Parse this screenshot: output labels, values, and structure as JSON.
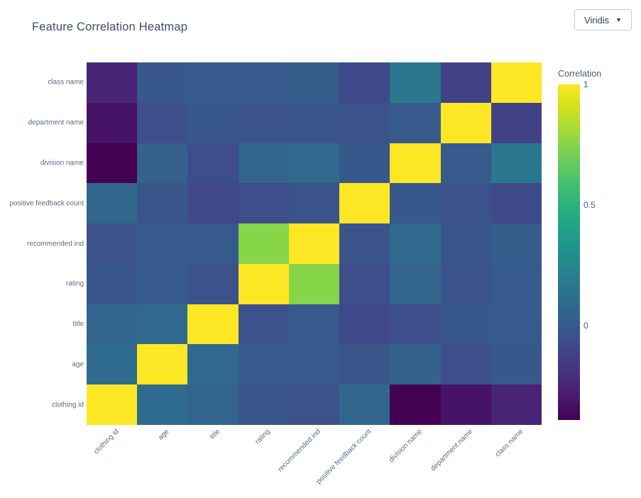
{
  "header": {
    "title": "Feature Correlation Heatmap"
  },
  "controls": {
    "colormap": {
      "value": "Viridis",
      "arrow": "▼"
    }
  },
  "chart_data": {
    "type": "heatmap",
    "title": "Feature Correlation Heatmap",
    "colorscale_name": "Viridis",
    "legend_position": "right",
    "grid": false,
    "x_categories": [
      "clothing id",
      "age",
      "title",
      "rating",
      "recommended ind",
      "positive feedback count",
      "division name",
      "department name",
      "class name"
    ],
    "y_categories": [
      "class name",
      "department name",
      "division name",
      "positive feedback count",
      "recommended ind",
      "rating",
      "title",
      "age",
      "clothing id"
    ],
    "z": [
      [
        -0.25,
        -0.01,
        0.0,
        0.0,
        0.01,
        -0.08,
        0.16,
        -0.12,
        1.0
      ],
      [
        -0.32,
        -0.06,
        -0.01,
        -0.03,
        -0.02,
        -0.04,
        0.0,
        1.0,
        -0.12
      ],
      [
        -0.39,
        0.04,
        -0.06,
        0.05,
        0.08,
        -0.01,
        1.0,
        0.0,
        0.16
      ],
      [
        0.07,
        -0.02,
        -0.09,
        -0.06,
        -0.03,
        1.0,
        -0.01,
        -0.04,
        -0.08
      ],
      [
        -0.04,
        0.0,
        0.0,
        0.75,
        1.0,
        -0.03,
        0.08,
        -0.02,
        0.01
      ],
      [
        -0.02,
        0.0,
        -0.04,
        1.0,
        0.75,
        -0.06,
        0.05,
        -0.03,
        0.0
      ],
      [
        0.06,
        0.08,
        1.0,
        -0.04,
        0.0,
        -0.09,
        -0.06,
        -0.01,
        0.0
      ],
      [
        0.09,
        1.0,
        0.08,
        0.0,
        0.0,
        -0.02,
        0.04,
        -0.06,
        -0.01
      ],
      [
        1.0,
        0.09,
        0.06,
        -0.02,
        -0.04,
        0.07,
        -0.39,
        -0.32,
        -0.25
      ]
    ],
    "zmin": -0.39,
    "zmax": 1,
    "colorscale_stops": [
      [
        0.0,
        "#440154"
      ],
      [
        0.0627,
        "#48186a"
      ],
      [
        0.1255,
        "#472d7b"
      ],
      [
        0.1882,
        "#424086"
      ],
      [
        0.251,
        "#3b528b"
      ],
      [
        0.3137,
        "#33638d"
      ],
      [
        0.3765,
        "#2c728e"
      ],
      [
        0.4392,
        "#26828e"
      ],
      [
        0.502,
        "#21918c"
      ],
      [
        0.5647,
        "#1fa088"
      ],
      [
        0.6275,
        "#28ae80"
      ],
      [
        0.6902,
        "#3fbc73"
      ],
      [
        0.7529,
        "#5ec962"
      ],
      [
        0.8157,
        "#84d44b"
      ],
      [
        0.8784,
        "#addc30"
      ],
      [
        0.9412,
        "#d8e219"
      ],
      [
        1.0,
        "#fde725"
      ]
    ],
    "colorbar": {
      "title": "Correlation",
      "ticks": [
        {
          "value": 1,
          "label": "1"
        },
        {
          "value": 0.5,
          "label": "0.5"
        },
        {
          "value": 0,
          "label": "0"
        }
      ]
    }
  }
}
